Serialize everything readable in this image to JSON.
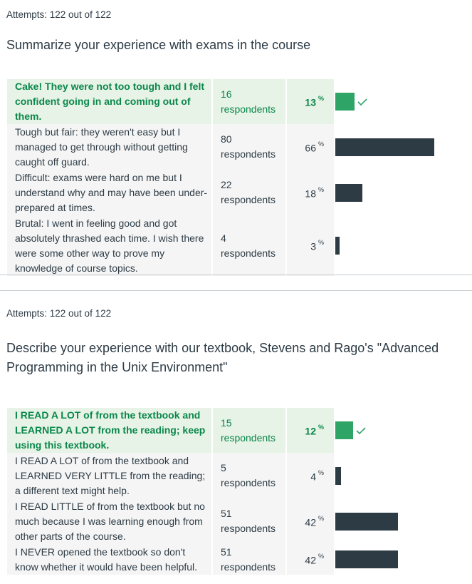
{
  "questions": [
    {
      "attempts": "Attempts: 122 out of 122",
      "text": "Summarize your experience with exams in the course",
      "answers": [
        {
          "text": "Cake! They were not too tough and I felt confident going in and coming out of them.",
          "respondents": "16 respondents",
          "percent": "13",
          "value": 13,
          "correct": true
        },
        {
          "text": "Tough but fair: they weren't easy but I managed to get through without getting caught off guard.",
          "respondents": "80 respondents",
          "percent": "66",
          "value": 66,
          "correct": false
        },
        {
          "text": "Difficult: exams were hard on me but I understand why and may have been under-prepared at times.",
          "respondents": "22 respondents",
          "percent": "18",
          "value": 18,
          "correct": false
        },
        {
          "text": "Brutal: I went in feeling good and got absolutely thrashed each time. I wish there were some other way to prove my knowledge of course topics.",
          "respondents": "4 respondents",
          "percent": "3",
          "value": 3,
          "correct": false
        }
      ]
    },
    {
      "attempts": "Attempts: 122 out of 122",
      "text": "Describe your experience with our textbook, Stevens and Rago's \"Advanced Programming in the Unix Environment\"",
      "answers": [
        {
          "text": "I READ A LOT of from the textbook and LEARNED A LOT from the reading; keep using this textbook.",
          "respondents": "15 respondents",
          "percent": "12",
          "value": 12,
          "correct": true
        },
        {
          "text": "I READ A LOT of from the textbook and LEARNED VERY LITTLE from the reading; a different text might help.",
          "respondents": "5 respondents",
          "percent": "4",
          "value": 4,
          "correct": false
        },
        {
          "text": "I READ LITTLE of from the textbook but no much because I was learning enough from other parts of the course.",
          "respondents": "51 respondents",
          "percent": "42",
          "value": 42,
          "correct": false
        },
        {
          "text": "I NEVER opened the textbook so don't know whether it would have been helpful.",
          "respondents": "51 respondents",
          "percent": "42",
          "value": 42,
          "correct": false
        }
      ]
    }
  ],
  "percent_sign": "%",
  "icons": {
    "correct": "check-icon"
  },
  "colors": {
    "correct_bar": "#2ea566",
    "bar": "#2d3b45",
    "correct_bg": "#e6f3e6",
    "correct_text": "#0b874b"
  }
}
